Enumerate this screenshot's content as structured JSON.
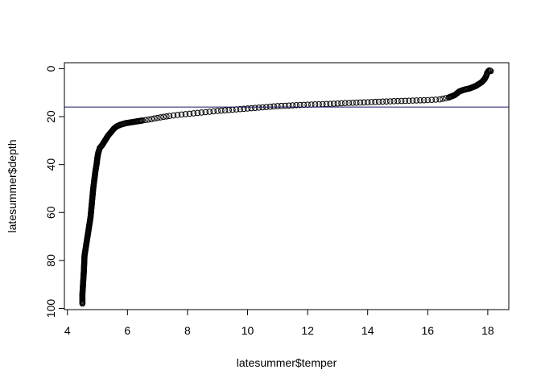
{
  "chart_data": {
    "type": "scatter",
    "title": "",
    "xlabel": "latesummer$temper",
    "ylabel": "latesummer$depth",
    "xlim": [
      3.9,
      18.7
    ],
    "ylim": [
      100.5,
      -2.5
    ],
    "y_reversed": true,
    "x_ticks": [
      4,
      6,
      8,
      10,
      12,
      14,
      16,
      18
    ],
    "y_ticks": [
      0,
      20,
      40,
      60,
      80,
      100
    ],
    "hline": 16,
    "grid": false,
    "legend": "none",
    "marker": "open-circle",
    "point_color": "#000000",
    "line_color": "#1a1a6e",
    "curve_profile": [
      [
        4.5,
        98
      ],
      [
        4.5,
        94
      ],
      [
        4.52,
        90
      ],
      [
        4.55,
        84
      ],
      [
        4.57,
        78
      ],
      [
        4.62,
        74
      ],
      [
        4.67,
        70
      ],
      [
        4.72,
        66
      ],
      [
        4.77,
        62
      ],
      [
        4.8,
        58
      ],
      [
        4.83,
        54
      ],
      [
        4.86,
        50
      ],
      [
        4.9,
        46
      ],
      [
        4.93,
        43
      ],
      [
        4.97,
        40
      ],
      [
        5.0,
        37
      ],
      [
        5.03,
        35
      ],
      [
        5.08,
        33
      ],
      [
        5.15,
        32
      ],
      [
        5.25,
        30
      ],
      [
        5.35,
        28
      ],
      [
        5.45,
        26.5
      ],
      [
        5.55,
        25
      ],
      [
        5.65,
        24
      ],
      [
        5.78,
        23.3
      ],
      [
        5.95,
        22.7
      ],
      [
        6.2,
        22.2
      ],
      [
        6.5,
        21.6
      ],
      [
        6.8,
        21.0
      ],
      [
        7.1,
        20.3
      ],
      [
        7.4,
        19.7
      ],
      [
        7.8,
        19.1
      ],
      [
        8.2,
        18.6
      ],
      [
        8.6,
        18.1
      ],
      [
        9.0,
        17.6
      ],
      [
        9.5,
        17.1
      ],
      [
        10.0,
        16.6
      ],
      [
        10.5,
        16.1
      ],
      [
        11.0,
        15.6
      ],
      [
        11.5,
        15.3
      ],
      [
        12.0,
        15.0
      ],
      [
        12.5,
        14.8
      ],
      [
        13.0,
        14.5
      ],
      [
        13.5,
        14.2
      ],
      [
        14.0,
        14.0
      ],
      [
        14.5,
        13.7
      ],
      [
        15.0,
        13.5
      ],
      [
        15.5,
        13.3
      ],
      [
        16.0,
        13.1
      ],
      [
        16.4,
        12.8
      ],
      [
        16.7,
        12.0
      ],
      [
        16.9,
        11.0
      ],
      [
        17.05,
        9.5
      ],
      [
        17.2,
        8.8
      ],
      [
        17.4,
        8.2
      ],
      [
        17.6,
        7.2
      ],
      [
        17.8,
        5.6
      ],
      [
        17.9,
        4.2
      ],
      [
        17.95,
        3.0
      ],
      [
        17.98,
        1.8
      ],
      [
        18.02,
        1.0
      ],
      [
        18.05,
        0.7
      ],
      [
        18.1,
        1.0
      ]
    ]
  }
}
